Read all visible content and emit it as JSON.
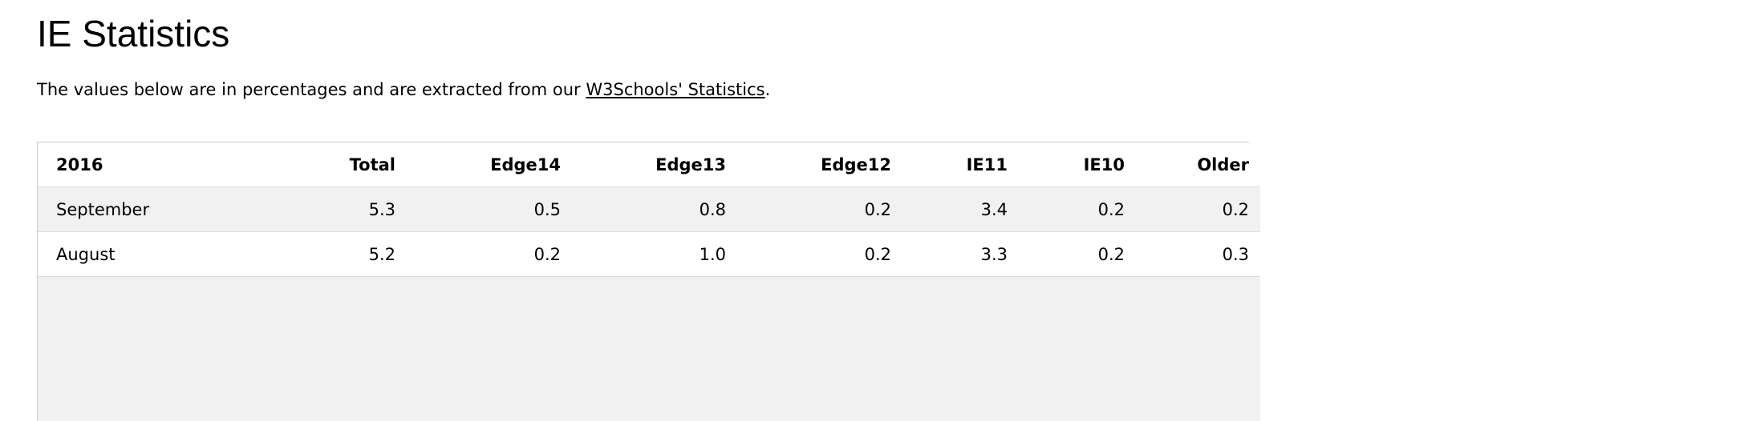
{
  "page": {
    "title": "IE Statistics",
    "intro_prefix": "The values below are in percentages and are extracted from our ",
    "intro_link": "W3Schools' Statistics",
    "intro_suffix": "."
  },
  "table": {
    "headers": [
      "2016",
      "Total",
      "Edge14",
      "Edge13",
      "Edge12",
      "IE11",
      "IE10",
      "Older"
    ],
    "rows": [
      [
        "September",
        "5.3",
        "0.5",
        "0.8",
        "0.2",
        "3.4",
        "0.2",
        "0.2"
      ],
      [
        "August",
        "5.2",
        "0.2",
        "1.0",
        "0.2",
        "3.3",
        "0.2",
        "0.3"
      ]
    ]
  }
}
